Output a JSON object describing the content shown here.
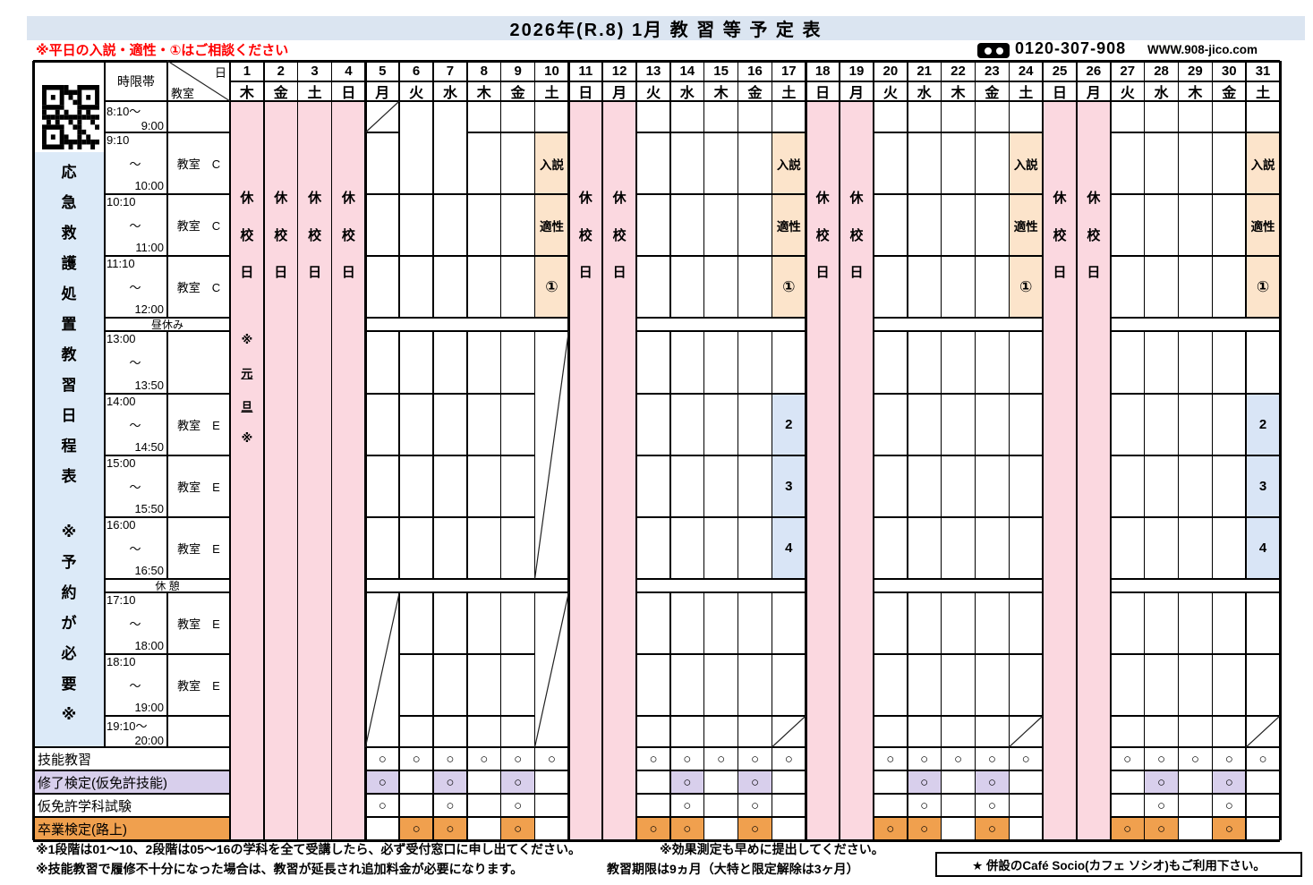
{
  "title": "2026年(R.8) 1月 教 習 等 予 定 表",
  "red_note": "※平日の入説・適性・①はご相談ください",
  "phone": "0120-307-908",
  "website": "WWW.908-jico.com",
  "sidebar_text": "応急救護処置教習日程表 ※予約が必要※",
  "corner": {
    "time": "時限帯",
    "day": "日",
    "room": "教室"
  },
  "holiday_label": "休校日",
  "newyear_label": "※元旦※",
  "circle_mark": "○",
  "days": [
    {
      "n": 1,
      "w": "木",
      "off": true
    },
    {
      "n": 2,
      "w": "金",
      "off": true
    },
    {
      "n": 3,
      "w": "土",
      "off": true
    },
    {
      "n": 4,
      "w": "日",
      "off": true
    },
    {
      "n": 5,
      "w": "月",
      "off": false
    },
    {
      "n": 6,
      "w": "火",
      "off": false
    },
    {
      "n": 7,
      "w": "水",
      "off": false
    },
    {
      "n": 8,
      "w": "木",
      "off": false
    },
    {
      "n": 9,
      "w": "金",
      "off": false
    },
    {
      "n": 10,
      "w": "土",
      "off": false
    },
    {
      "n": 11,
      "w": "日",
      "off": true
    },
    {
      "n": 12,
      "w": "月",
      "off": true
    },
    {
      "n": 13,
      "w": "火",
      "off": false
    },
    {
      "n": 14,
      "w": "水",
      "off": false
    },
    {
      "n": 15,
      "w": "木",
      "off": false
    },
    {
      "n": 16,
      "w": "金",
      "off": false
    },
    {
      "n": 17,
      "w": "土",
      "off": false
    },
    {
      "n": 18,
      "w": "日",
      "off": true
    },
    {
      "n": 19,
      "w": "月",
      "off": true
    },
    {
      "n": 20,
      "w": "火",
      "off": false
    },
    {
      "n": 21,
      "w": "水",
      "off": false
    },
    {
      "n": 22,
      "w": "木",
      "off": false
    },
    {
      "n": 23,
      "w": "金",
      "off": false
    },
    {
      "n": 24,
      "w": "土",
      "off": false
    },
    {
      "n": 25,
      "w": "日",
      "off": true
    },
    {
      "n": 26,
      "w": "月",
      "off": true
    },
    {
      "n": 27,
      "w": "火",
      "off": false
    },
    {
      "n": 28,
      "w": "水",
      "off": false
    },
    {
      "n": 29,
      "w": "木",
      "off": false
    },
    {
      "n": 30,
      "w": "金",
      "off": false
    },
    {
      "n": 31,
      "w": "土",
      "off": false
    }
  ],
  "time_rows": [
    {
      "id": "r0",
      "t1": "8:10～",
      "t2": "9:00",
      "room": ""
    },
    {
      "id": "r1",
      "t1": "9:10",
      "tm": "～",
      "t2": "10:00",
      "room": "教室　C"
    },
    {
      "id": "r2",
      "t1": "10:10",
      "tm": "～",
      "t2": "11:00",
      "room": "教室　C"
    },
    {
      "id": "r3",
      "t1": "11:10",
      "tm": "～",
      "t2": "12:00",
      "room": "教室　C"
    },
    {
      "id": "lunch",
      "label": "昼休み"
    },
    {
      "id": "r4",
      "t1": "13:00",
      "tm": "～",
      "t2": "13:50",
      "room": ""
    },
    {
      "id": "r5",
      "t1": "14:00",
      "tm": "～",
      "t2": "14:50",
      "room": "教室　E"
    },
    {
      "id": "r6",
      "t1": "15:00",
      "tm": "～",
      "t2": "15:50",
      "room": "教室　E"
    },
    {
      "id": "r7",
      "t1": "16:00",
      "tm": "～",
      "t2": "16:50",
      "room": "教室　E"
    },
    {
      "id": "break",
      "label": "休 憩"
    },
    {
      "id": "r8",
      "t1": "17:10",
      "tm": "～",
      "t2": "18:00",
      "room": "教室　E"
    },
    {
      "id": "r9",
      "t1": "18:10",
      "tm": "～",
      "t2": "19:00",
      "room": "教室　E"
    },
    {
      "id": "r10",
      "t1": "19:10～",
      "t2": "20:00",
      "room": ""
    }
  ],
  "saturday": {
    "days": [
      10,
      17,
      24,
      31
    ],
    "events": [
      {
        "row": "r1",
        "label": "入説"
      },
      {
        "row": "r2",
        "label": "適性"
      },
      {
        "row": "r3",
        "label": "①"
      }
    ]
  },
  "stage_numbers": {
    "days": [
      17,
      31
    ],
    "cells": [
      {
        "row": "r5",
        "label": "2"
      },
      {
        "row": "r6",
        "label": "3"
      },
      {
        "row": "r7",
        "label": "4"
      }
    ]
  },
  "crossed": [
    {
      "day": 5,
      "from": "r0",
      "to": "r0"
    },
    {
      "day": 5,
      "from": "r8",
      "to": "r10"
    },
    {
      "day": 10,
      "from": "r4",
      "to": "r7"
    },
    {
      "day": 10,
      "from": "r8",
      "to": "r10"
    },
    {
      "day": 17,
      "from": "r10",
      "to": "r10"
    },
    {
      "day": 24,
      "from": "r10",
      "to": "r10"
    },
    {
      "day": 31,
      "from": "r10",
      "to": "r10"
    }
  ],
  "merged_morning_days": [
    6,
    7
  ],
  "bottom_rows": [
    {
      "label": "技能教習",
      "label_bg": "#ffffff",
      "cell_bg": "#ffffff",
      "circles": [
        5,
        6,
        7,
        8,
        9,
        10,
        13,
        14,
        15,
        16,
        17,
        20,
        21,
        22,
        23,
        24,
        27,
        28,
        29,
        30,
        31
      ]
    },
    {
      "label": "修了検定(仮免許技能)",
      "label_bg": "#d8cfec",
      "cell_bg": "#d8cfec",
      "circles": [
        5,
        7,
        9,
        14,
        16,
        21,
        23,
        28,
        30
      ]
    },
    {
      "label": "仮免許学科試験",
      "label_bg": "#ffffff",
      "cell_bg": "#ffffff",
      "circles": [
        5,
        7,
        9,
        14,
        16,
        21,
        23,
        28,
        30
      ]
    },
    {
      "label": "卒業検定(路上)",
      "label_bg": "#f0a04e",
      "cell_bg": "#f0a04e",
      "circles": [
        6,
        7,
        9,
        13,
        14,
        16,
        20,
        21,
        23,
        27,
        28,
        30
      ]
    }
  ],
  "notes": {
    "line1a": "※1段階は01～10、2段階は05～16の学科を全て受講したら、必ず受付窓口に申し出てください。",
    "line1b": "※効果測定も早めに提出してください。",
    "line2a": "※技能教習で履修不十分になった場合は、教習が延長され追加料金が必要になります。",
    "line2b": "教習期限は9ヵ月（大特と限定解除は3ヶ月）",
    "cafe": "★ 併設のCafé Socio(カフェ ソシオ)もご利用下さい。"
  },
  "colors": {
    "banner": "#dbe5f1",
    "pink": "#fbd8e0",
    "peach": "#fce4cb",
    "blue": "#d9e5f6",
    "sidebar": "#dceaf8",
    "lavender": "#d8cfec",
    "orange": "#f0a04e",
    "red": "#ff0000"
  }
}
